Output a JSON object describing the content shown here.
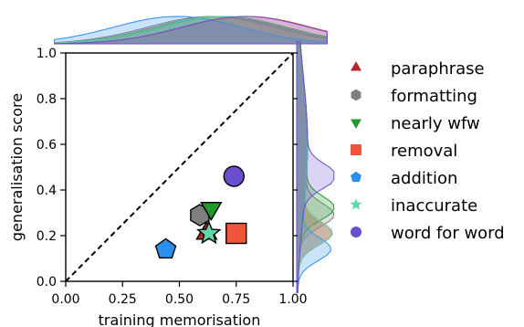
{
  "chart_data": {
    "type": "scatter",
    "title": "",
    "xlabel": "training memorisation",
    "ylabel": "generalisation score",
    "xlim": [
      0.0,
      1.0
    ],
    "ylim": [
      0.0,
      1.0
    ],
    "xticks": [
      "0.00",
      "0.25",
      "0.50",
      "0.75",
      "1.00"
    ],
    "yticks": [
      "0.0",
      "0.2",
      "0.4",
      "0.6",
      "0.8",
      "1.0"
    ],
    "grid": false,
    "diagonal": "dashed y = x",
    "marginals": "kernel density curves on top and right edges",
    "legend_position": "right",
    "series": [
      {
        "name": "paraphrase",
        "marker": "triangle-up",
        "color": "#b5262a",
        "x": 0.62,
        "y": 0.21
      },
      {
        "name": "formatting",
        "marker": "hexagon",
        "color": "#7f7f7f",
        "x": 0.59,
        "y": 0.29
      },
      {
        "name": "nearly wfw",
        "marker": "triangle-down",
        "color": "#1f9a2b",
        "x": 0.64,
        "y": 0.32
      },
      {
        "name": "removal",
        "marker": "square",
        "color": "#f2553e",
        "x": 0.75,
        "y": 0.21
      },
      {
        "name": "addition",
        "marker": "pentagon",
        "color": "#2b8ff0",
        "x": 0.44,
        "y": 0.14
      },
      {
        "name": "inaccurate",
        "marker": "star",
        "color": "#62d6a6",
        "x": 0.63,
        "y": 0.21
      },
      {
        "name": "word for word",
        "marker": "circle",
        "color": "#6a4fcf",
        "x": 0.74,
        "y": 0.46
      }
    ]
  }
}
